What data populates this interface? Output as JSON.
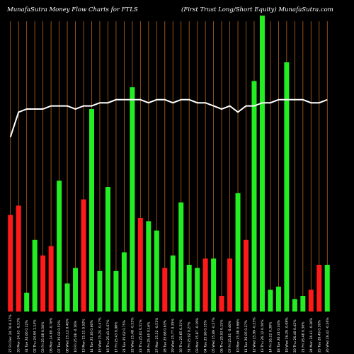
{
  "header": {
    "title_left": "MunafaSutra  Money Flow  Charts for FTLS",
    "title_right": "(First Trust Long/Short Equity) MunafaSutra.com"
  },
  "colors": {
    "background": "#000000",
    "grid": "#b5651d",
    "up": "#22ee22",
    "down": "#ff1a1a",
    "line": "#ffffff"
  },
  "chart_data": {
    "type": "bar",
    "grid": "vertical",
    "ylim": [
      0,
      100
    ],
    "categories": [
      "27 Fri Dec 24.76 0.17%",
      "30 Mon 24.63 -0.53%",
      "31 Tue 24.66 0.12%",
      "02 Thu 24.94 1.14%",
      "03 Fri 25.08 0.56%",
      "06 Mon 24.89 -0.76%",
      "07 Tue 25.02 0.52%",
      "08 Wed 25.12 0.40%",
      "10 Fri 25.08 -0.16%",
      "13 Mon 25.21 0.52%",
      "14 Tue 25.36 0.60%",
      "15 Wed 25.24 -0.47%",
      "16 Thu 25.41 0.67%",
      "17 Fri 25.43 0.08%",
      "21 Tue 25.62 0.75%",
      "22 Wed 25.48 -0.55%",
      "23 Thu 25.61 0.51%",
      "24 Fri 25.65 0.16%",
      "27 Mon 25.52 -0.51%",
      "28 Tue 25.68 0.63%",
      "29 Wed 25.77 0.35%",
      "30 Thu 25.85 0.31%",
      "31 Fri 25.92 0.27%",
      "03 Mon 25.87 -0.19%",
      "04 Tue 25.96 0.35%",
      "05 Wed 25.89 -0.27%",
      "06 Thu 25.93 0.15%",
      "07 Fri 25.81 -0.46%",
      "10 Mon 25.98 0.66%",
      "11 Tue 26.05 0.27%",
      "12 Wed 25.99 -0.23%",
      "13 Thu 26.12 0.50%",
      "14 Fri 26.22 0.38%",
      "18 Tue 26.31 0.34%",
      "19 Wed 26.29 -0.08%",
      "20 Thu 26.40 0.42%",
      "21 Fri 26.48 0.30%",
      "24 Mon 26.41 -0.26%",
      "25 Tue 26.49 0.30%",
      "26 Wed 26.42 -0.26%"
    ],
    "values": [
      31,
      34,
      6,
      23,
      18,
      21,
      42,
      9,
      14,
      36,
      65,
      13,
      40,
      13,
      19,
      72,
      30,
      29,
      26,
      14,
      18,
      35,
      15,
      14,
      17,
      17,
      5,
      17,
      38,
      23,
      74,
      95,
      7,
      8,
      80,
      4,
      5,
      7,
      15,
      15
    ],
    "directions": [
      "down",
      "down",
      "up",
      "up",
      "down",
      "down",
      "up",
      "up",
      "up",
      "down",
      "up",
      "up",
      "up",
      "up",
      "up",
      "up",
      "down",
      "up",
      "up",
      "down",
      "up",
      "up",
      "up",
      "up",
      "down",
      "up",
      "down",
      "down",
      "up",
      "down",
      "up",
      "up",
      "up",
      "up",
      "up",
      "up",
      "up",
      "down",
      "down",
      "up"
    ],
    "line": [
      56,
      64,
      65,
      65,
      65,
      66,
      66,
      66,
      65,
      66,
      66,
      67,
      67,
      68,
      68,
      68,
      68,
      67,
      68,
      68,
      67,
      68,
      68,
      67,
      67,
      66,
      65,
      66,
      64,
      66,
      66,
      67,
      67,
      68,
      68,
      68,
      68,
      67,
      67,
      68
    ]
  }
}
